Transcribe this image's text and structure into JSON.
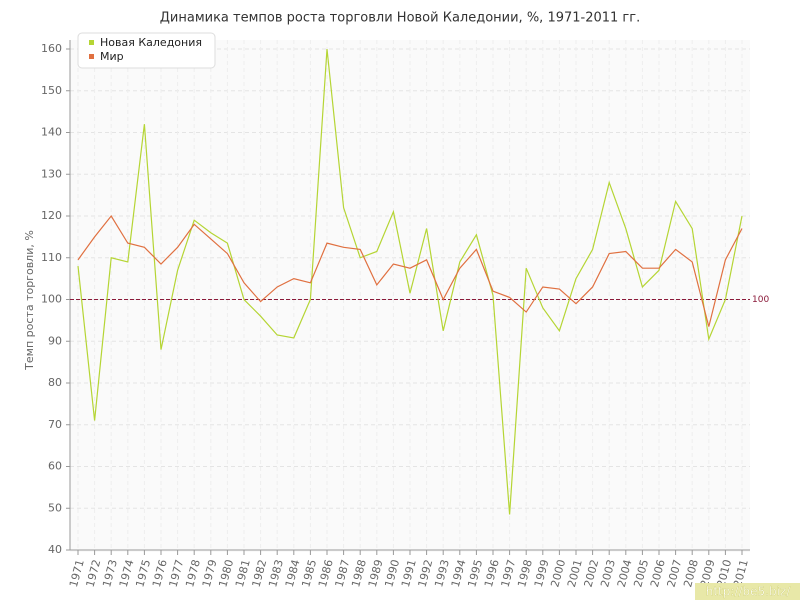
{
  "chart_data": {
    "type": "line",
    "title": "Динамика темпов роста торговли Новой Каледонии, %, 1971-2011 гг.",
    "y_label": "Темп роста торговли, %",
    "categories": [
      "1971",
      "1972",
      "1973",
      "1974",
      "1975",
      "1976",
      "1977",
      "1978",
      "1979",
      "1980",
      "1981",
      "1982",
      "1983",
      "1984",
      "1985",
      "1986",
      "1987",
      "1988",
      "1989",
      "1990",
      "1991",
      "1992",
      "1993",
      "1994",
      "1995",
      "1996",
      "1997",
      "1998",
      "1999",
      "2000",
      "2001",
      "2002",
      "2003",
      "2004",
      "2005",
      "2006",
      "2007",
      "2008",
      "2009",
      "2010",
      "2011"
    ],
    "series": [
      {
        "name": "Новая Каледония",
        "color": "#b5d534",
        "values": [
          108,
          71,
          110,
          109,
          142,
          88,
          107,
          119,
          116,
          113.5,
          100,
          96,
          91.5,
          90.8,
          100,
          160,
          122,
          110,
          111.5,
          121,
          101.5,
          117,
          92.5,
          109,
          115.5,
          101,
          48.5,
          107.5,
          98,
          92.5,
          105,
          112,
          128,
          117,
          103,
          107,
          123.5,
          117,
          90.5,
          100,
          120
        ]
      },
      {
        "name": "Мир",
        "color": "#e07040",
        "values": [
          109.5,
          115,
          120,
          113.5,
          112.5,
          108.5,
          112.5,
          118,
          114.5,
          111,
          104,
          99.5,
          103,
          105,
          104,
          113.5,
          112.5,
          112,
          103.5,
          108.5,
          107.5,
          109.5,
          100,
          107.5,
          112,
          102,
          100.5,
          97,
          103,
          102.5,
          99,
          103,
          111,
          111.5,
          107.5,
          107.5,
          112,
          109,
          93.5,
          109.5,
          117
        ]
      }
    ],
    "ylim": [
      40,
      160
    ],
    "yticks": [
      40,
      50,
      60,
      70,
      80,
      90,
      100,
      110,
      120,
      130,
      140,
      150,
      160
    ],
    "grid": true,
    "reference_line": {
      "value": 100,
      "label": "100",
      "color": "#8b1a3a"
    },
    "legend": "top-left",
    "watermark": "http://be5.biz/"
  }
}
